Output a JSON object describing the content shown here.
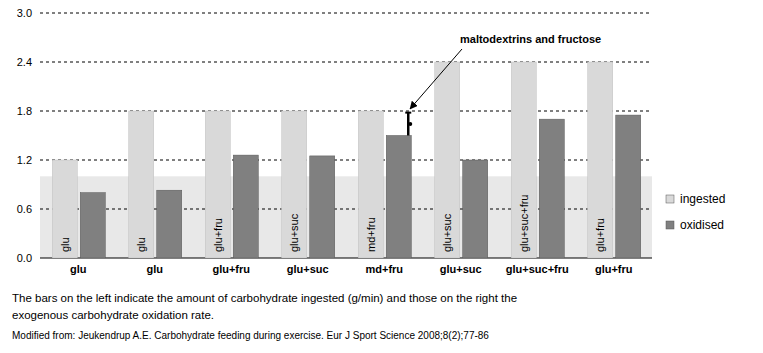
{
  "chart_data": {
    "type": "bar",
    "categories": [
      "glu",
      "glu",
      "glu+fru",
      "glu+suc",
      "md+fru",
      "glu+suc",
      "glu+suc+fru",
      "glu+fru"
    ],
    "series": [
      {
        "name": "ingested",
        "color": "#d9d9d9",
        "values": [
          1.2,
          1.8,
          1.8,
          1.8,
          1.8,
          2.4,
          2.4,
          2.4
        ]
      },
      {
        "name": "oxidised",
        "color": "#808080",
        "values": [
          0.8,
          0.83,
          1.26,
          1.25,
          1.5,
          1.2,
          1.7,
          1.75
        ],
        "errors": [
          null,
          null,
          null,
          null,
          0.28,
          null,
          null,
          null
        ]
      }
    ],
    "ylim": [
      0,
      3
    ],
    "yticks": [
      {
        "value": 0,
        "label": "0.0"
      },
      0.6,
      1.2,
      1.8,
      2.4,
      {
        "value": 3,
        "label": "3.0"
      }
    ],
    "grid": true,
    "legend": "right",
    "shaded_band": [
      0,
      1
    ],
    "annotation": "maltodextrins and fructose",
    "caption": [
      "The bars on the left indicate the amount of carbohydrate ingested (g/min) and those on the right the",
      "exogenous carbohydrate oxidation rate."
    ],
    "source": "Modified from: Jeukendrup A.E. Carbohydrate feeding during exercise. Eur J Sport Science 2008;8(2);77-86"
  }
}
